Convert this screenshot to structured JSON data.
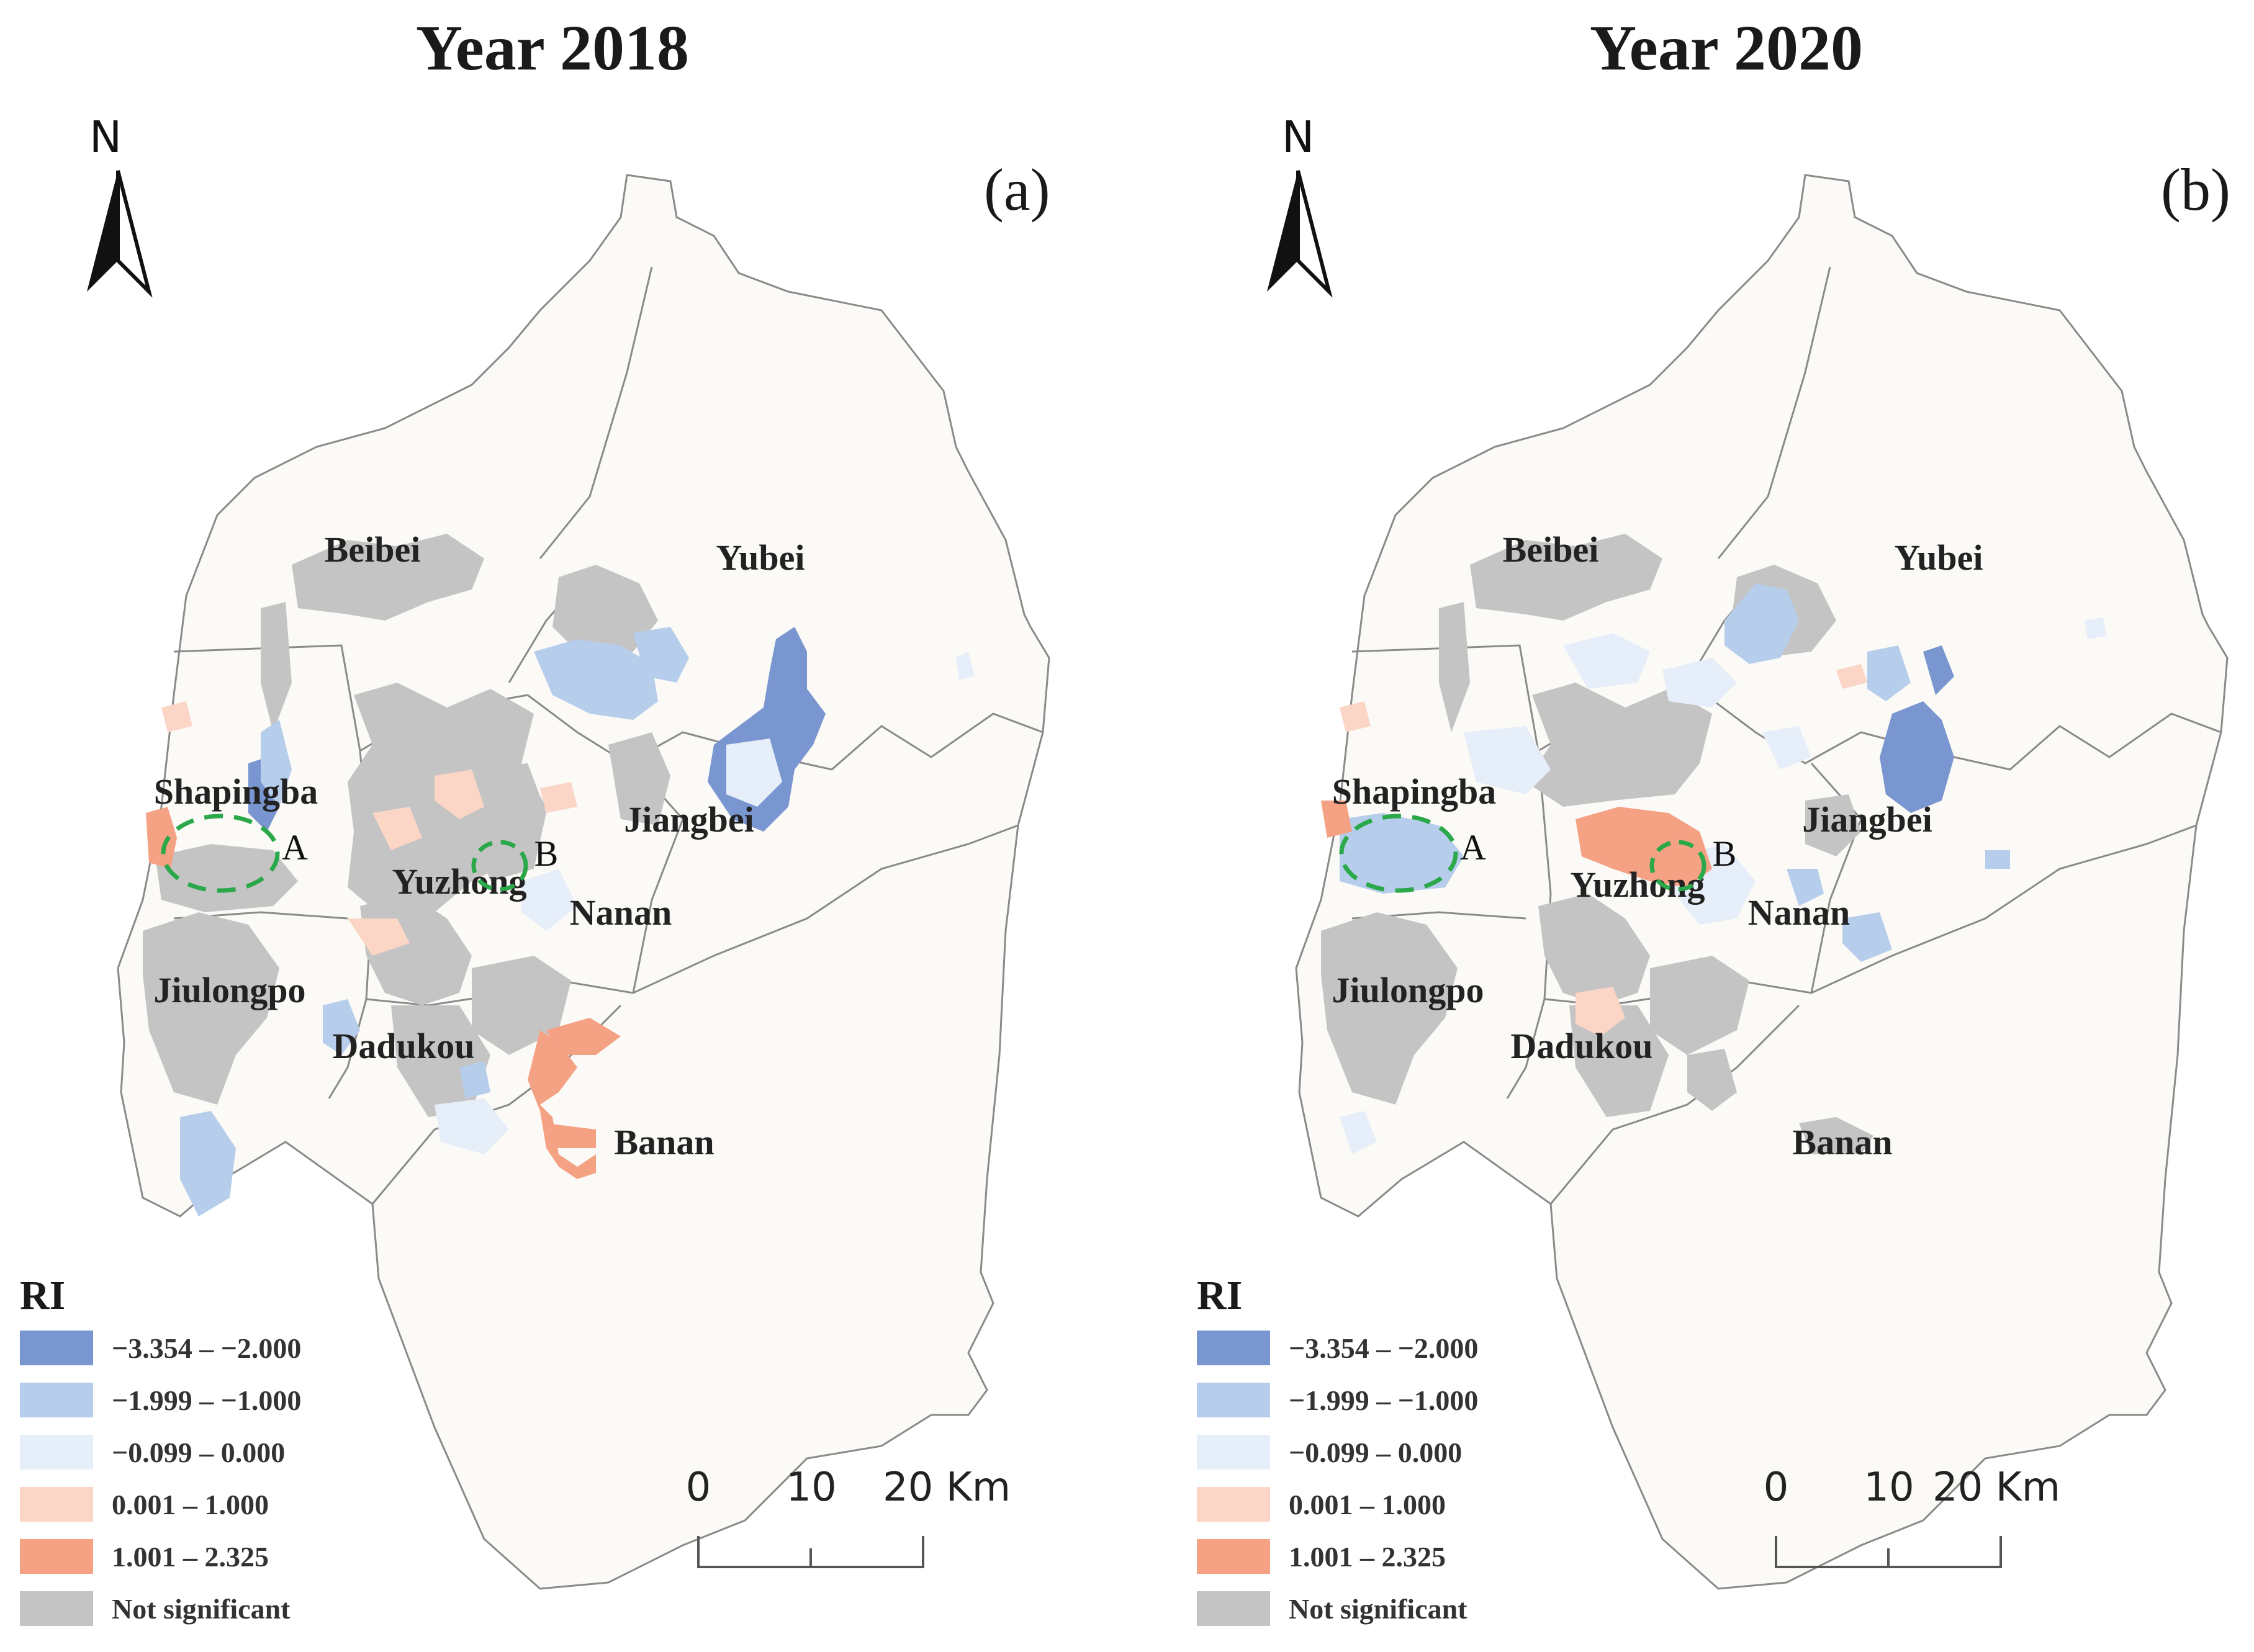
{
  "panels": [
    {
      "title": "Year 2018",
      "label": "(a)",
      "north": "N",
      "districts": [
        "Beibei",
        "Yubei",
        "Shapingba",
        "Jiangbei",
        "Yuzhong",
        "Nanan",
        "Jiulongpo",
        "Dadukou",
        "Banan"
      ],
      "markers": [
        "A",
        "B"
      ]
    },
    {
      "title": "Year 2020",
      "label": "(b)",
      "north": "N",
      "districts": [
        "Beibei",
        "Yubei",
        "Shapingba",
        "Jiangbei",
        "Yuzhong",
        "Nanan",
        "Jiulongpo",
        "Dadukou",
        "Banan"
      ],
      "markers": [
        "A",
        "B"
      ]
    }
  ],
  "legend": {
    "title": "RI",
    "items": [
      {
        "label": "−3.354 – −2.000",
        "color": "#7a96d0"
      },
      {
        "label": "−1.999 – −1.000",
        "color": "#b6cdeb"
      },
      {
        "label": "−0.099 – 0.000",
        "color": "#e6eef9"
      },
      {
        "label": "0.001 – 1.000",
        "color": "#fbd6c6"
      },
      {
        "label": "1.001 – 2.325",
        "color": "#f5a184"
      },
      {
        "label": "Not significant",
        "color": "#c4c4c4"
      }
    ]
  },
  "scalebar": {
    "ticks": [
      "0",
      "10",
      "20 Km"
    ]
  },
  "colors": {
    "land": "#fbfaf6",
    "boundary": "#8a8a8a",
    "marker_circle": "#2aa84a"
  }
}
